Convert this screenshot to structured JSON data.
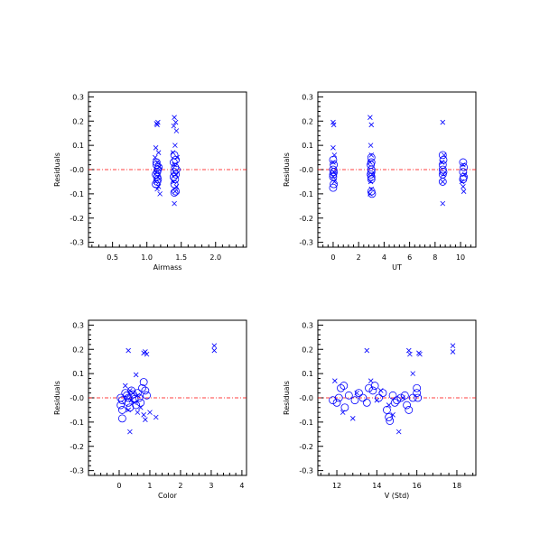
{
  "colors": {
    "marker": "#0000ff",
    "zero_line": "#ff0000",
    "axis": "#000000"
  },
  "chart_data": [
    {
      "type": "scatter",
      "xlabel": "Airmass",
      "ylabel": "Residuals",
      "xlim": [
        0.15,
        2.45
      ],
      "ylim": [
        -0.32,
        0.32
      ],
      "xticks": [
        0.5,
        1.0,
        1.5,
        2.0
      ],
      "xticklabels": [
        "0.5",
        "1.0",
        "1.5",
        "2.0"
      ],
      "yticks": [
        -0.3,
        -0.2,
        -0.1,
        0.0,
        0.1,
        0.2,
        0.3
      ],
      "yticklabels": [
        "-0.3",
        "-0.2",
        "-0.1",
        "-0.0",
        "0.1",
        "0.2",
        "0.3"
      ],
      "zero_line": 0,
      "series": [
        {
          "marker": "x",
          "points": [
            [
              1.14,
              0.19
            ],
            [
              1.16,
              0.195
            ],
            [
              1.15,
              0.185
            ],
            [
              1.13,
              0.09
            ],
            [
              1.17,
              0.07
            ],
            [
              1.12,
              0.05
            ],
            [
              1.15,
              0.03
            ],
            [
              1.18,
              0.01
            ],
            [
              1.14,
              -0.01
            ],
            [
              1.16,
              -0.03
            ],
            [
              1.13,
              -0.05
            ],
            [
              1.17,
              -0.07
            ],
            [
              1.15,
              -0.08
            ],
            [
              1.19,
              -0.1
            ],
            [
              1.4,
              0.215
            ],
            [
              1.42,
              0.195
            ],
            [
              1.39,
              0.18
            ],
            [
              1.43,
              0.16
            ],
            [
              1.41,
              0.1
            ],
            [
              1.38,
              0.07
            ],
            [
              1.44,
              0.05
            ],
            [
              1.4,
              0.02
            ],
            [
              1.42,
              -0.02
            ],
            [
              1.39,
              -0.05
            ],
            [
              1.43,
              -0.07
            ],
            [
              1.41,
              -0.09
            ],
            [
              1.4,
              -0.14
            ]
          ]
        },
        {
          "marker": "o",
          "points": [
            [
              1.14,
              0.02
            ],
            [
              1.16,
              0.0
            ],
            [
              1.15,
              -0.01
            ],
            [
              1.13,
              -0.02
            ],
            [
              1.17,
              0.01
            ],
            [
              1.15,
              -0.03
            ],
            [
              1.14,
              0.03
            ],
            [
              1.16,
              -0.04
            ],
            [
              1.15,
              -0.05
            ],
            [
              1.13,
              -0.06
            ],
            [
              1.4,
              0.06
            ],
            [
              1.42,
              0.04
            ],
            [
              1.39,
              0.03
            ],
            [
              1.41,
              0.01
            ],
            [
              1.43,
              0.0
            ],
            [
              1.4,
              -0.01
            ],
            [
              1.42,
              -0.02
            ],
            [
              1.39,
              -0.03
            ],
            [
              1.41,
              -0.04
            ],
            [
              1.4,
              -0.06
            ],
            [
              1.42,
              -0.09
            ],
            [
              1.4,
              -0.095
            ]
          ]
        }
      ]
    },
    {
      "type": "scatter",
      "xlabel": "UT",
      "ylabel": "Residuals",
      "xlim": [
        -1.2,
        11.2
      ],
      "ylim": [
        -0.32,
        0.32
      ],
      "xticks": [
        0,
        2,
        4,
        6,
        8,
        10
      ],
      "xticklabels": [
        "0",
        "2",
        "4",
        "6",
        "8",
        "10"
      ],
      "yticks": [
        -0.3,
        -0.2,
        -0.1,
        0.0,
        0.1,
        0.2,
        0.3
      ],
      "yticklabels": [
        "-0.3",
        "-0.2",
        "-0.1",
        "-0.0",
        "0.1",
        "0.2",
        "0.3"
      ],
      "zero_line": 0,
      "series": [
        {
          "marker": "x",
          "points": [
            [
              0.0,
              0.195
            ],
            [
              0.05,
              0.185
            ],
            [
              0.0,
              0.09
            ],
            [
              0.1,
              0.06
            ],
            [
              0.0,
              0.03
            ],
            [
              0.05,
              -0.01
            ],
            [
              0.0,
              -0.03
            ],
            [
              0.1,
              -0.05
            ],
            [
              2.9,
              0.215
            ],
            [
              3.0,
              0.185
            ],
            [
              2.95,
              0.1
            ],
            [
              3.0,
              0.06
            ],
            [
              2.9,
              0.03
            ],
            [
              3.05,
              -0.02
            ],
            [
              2.95,
              -0.05
            ],
            [
              3.0,
              -0.08
            ],
            [
              2.9,
              -0.1
            ],
            [
              8.6,
              0.195
            ],
            [
              8.7,
              0.06
            ],
            [
              8.55,
              0.03
            ],
            [
              8.65,
              -0.02
            ],
            [
              8.6,
              -0.05
            ],
            [
              8.6,
              -0.14
            ],
            [
              10.2,
              0.02
            ],
            [
              10.3,
              -0.02
            ],
            [
              10.1,
              -0.05
            ],
            [
              10.2,
              -0.07
            ],
            [
              10.25,
              -0.09
            ]
          ]
        },
        {
          "marker": "o",
          "points": [
            [
              0.0,
              0.04
            ],
            [
              0.05,
              0.02
            ],
            [
              0.0,
              0.0
            ],
            [
              0.05,
              -0.01
            ],
            [
              0.0,
              -0.02
            ],
            [
              0.0,
              -0.03
            ],
            [
              0.05,
              -0.06
            ],
            [
              0.0,
              -0.075
            ],
            [
              3.0,
              0.05
            ],
            [
              3.0,
              0.03
            ],
            [
              2.95,
              0.02
            ],
            [
              3.0,
              0.0
            ],
            [
              3.0,
              -0.01
            ],
            [
              2.95,
              -0.02
            ],
            [
              3.0,
              -0.03
            ],
            [
              3.0,
              -0.04
            ],
            [
              3.0,
              -0.09
            ],
            [
              3.05,
              -0.1
            ],
            [
              8.6,
              0.06
            ],
            [
              8.65,
              0.04
            ],
            [
              8.6,
              0.02
            ],
            [
              8.6,
              0.0
            ],
            [
              8.65,
              -0.01
            ],
            [
              8.6,
              -0.02
            ],
            [
              8.6,
              -0.05
            ],
            [
              10.2,
              0.03
            ],
            [
              10.25,
              0.01
            ],
            [
              10.2,
              -0.01
            ],
            [
              10.25,
              -0.03
            ],
            [
              10.2,
              -0.04
            ]
          ]
        }
      ]
    },
    {
      "type": "scatter",
      "xlabel": "Color",
      "ylabel": "Residuals",
      "xlim": [
        -1.0,
        4.15
      ],
      "ylim": [
        -0.32,
        0.32
      ],
      "xticks": [
        0,
        1,
        2,
        3,
        4
      ],
      "xticklabels": [
        "0",
        "1",
        "2",
        "3",
        "4"
      ],
      "yticks": [
        -0.3,
        -0.2,
        -0.1,
        0.0,
        0.1,
        0.2,
        0.3
      ],
      "yticklabels": [
        "-0.3",
        "-0.2",
        "-0.1",
        "-0.0",
        "0.1",
        "0.2",
        "0.3"
      ],
      "zero_line": 0,
      "series": [
        {
          "marker": "x",
          "points": [
            [
              0.3,
              0.195
            ],
            [
              0.85,
              0.19
            ],
            [
              0.9,
              0.18
            ],
            [
              0.8,
              0.185
            ],
            [
              0.55,
              0.095
            ],
            [
              0.2,
              0.05
            ],
            [
              0.35,
              0.03
            ],
            [
              0.45,
              0.02
            ],
            [
              0.6,
              0.01
            ],
            [
              0.25,
              0.0
            ],
            [
              0.4,
              -0.01
            ],
            [
              0.5,
              -0.02
            ],
            [
              0.7,
              -0.04
            ],
            [
              0.3,
              -0.05
            ],
            [
              0.6,
              -0.06
            ],
            [
              0.8,
              -0.07
            ],
            [
              1.0,
              -0.06
            ],
            [
              1.2,
              -0.08
            ],
            [
              0.85,
              -0.09
            ],
            [
              0.35,
              -0.14
            ],
            [
              3.1,
              0.215
            ],
            [
              3.1,
              0.195
            ]
          ]
        },
        {
          "marker": "o",
          "points": [
            [
              0.05,
              0.0
            ],
            [
              0.1,
              -0.01
            ],
            [
              0.05,
              -0.03
            ],
            [
              0.1,
              -0.05
            ],
            [
              0.1,
              -0.085
            ],
            [
              0.2,
              0.02
            ],
            [
              0.25,
              0.01
            ],
            [
              0.3,
              0.0
            ],
            [
              0.3,
              -0.02
            ],
            [
              0.35,
              -0.04
            ],
            [
              0.4,
              0.03
            ],
            [
              0.45,
              0.015
            ],
            [
              0.5,
              -0.005
            ],
            [
              0.55,
              -0.03
            ],
            [
              0.6,
              0.02
            ],
            [
              0.65,
              0.0
            ],
            [
              0.7,
              -0.02
            ],
            [
              0.75,
              0.04
            ],
            [
              0.8,
              0.065
            ],
            [
              0.85,
              0.03
            ],
            [
              0.9,
              0.01
            ]
          ]
        }
      ]
    },
    {
      "type": "scatter",
      "xlabel": "V (Std)",
      "ylabel": "Residuals",
      "xlim": [
        11.05,
        18.95
      ],
      "ylim": [
        -0.32,
        0.32
      ],
      "xticks": [
        12,
        14,
        16,
        18
      ],
      "xticklabels": [
        "12",
        "14",
        "16",
        "18"
      ],
      "yticks": [
        -0.3,
        -0.2,
        -0.1,
        0.0,
        0.1,
        0.2,
        0.3
      ],
      "yticklabels": [
        "-0.3",
        "-0.2",
        "-0.1",
        "-0.0",
        "0.1",
        "0.2",
        "0.3"
      ],
      "zero_line": 0,
      "series": [
        {
          "marker": "x",
          "points": [
            [
              11.9,
              0.07
            ],
            [
              12.3,
              -0.06
            ],
            [
              12.8,
              -0.085
            ],
            [
              13.5,
              0.195
            ],
            [
              13.7,
              0.07
            ],
            [
              14.2,
              0.03
            ],
            [
              14.6,
              -0.03
            ],
            [
              14.8,
              -0.07
            ],
            [
              15.1,
              -0.14
            ],
            [
              15.6,
              0.195
            ],
            [
              15.65,
              0.18
            ],
            [
              15.8,
              0.1
            ],
            [
              16.1,
              0.185
            ],
            [
              16.15,
              0.18
            ],
            [
              17.8,
              0.215
            ],
            [
              17.8,
              0.19
            ],
            [
              13.0,
              0.02
            ],
            [
              14.0,
              -0.01
            ],
            [
              15.3,
              0.0
            ]
          ]
        },
        {
          "marker": "o",
          "points": [
            [
              11.8,
              -0.01
            ],
            [
              12.0,
              -0.02
            ],
            [
              12.1,
              0.0
            ],
            [
              12.2,
              0.04
            ],
            [
              12.35,
              0.05
            ],
            [
              12.4,
              -0.04
            ],
            [
              12.6,
              0.01
            ],
            [
              12.9,
              -0.01
            ],
            [
              13.1,
              0.02
            ],
            [
              13.3,
              0.0
            ],
            [
              13.5,
              -0.02
            ],
            [
              13.6,
              0.04
            ],
            [
              13.8,
              0.03
            ],
            [
              13.9,
              0.05
            ],
            [
              14.1,
              0.0
            ],
            [
              14.3,
              0.02
            ],
            [
              14.5,
              -0.05
            ],
            [
              14.6,
              -0.08
            ],
            [
              14.65,
              -0.095
            ],
            [
              14.8,
              0.01
            ],
            [
              14.9,
              -0.02
            ],
            [
              15.0,
              -0.01
            ],
            [
              15.2,
              0.0
            ],
            [
              15.4,
              0.01
            ],
            [
              15.5,
              -0.03
            ],
            [
              15.6,
              -0.05
            ],
            [
              15.8,
              0.0
            ],
            [
              16.0,
              0.04
            ],
            [
              16.0,
              0.02
            ],
            [
              16.05,
              0.0
            ]
          ]
        }
      ]
    }
  ]
}
